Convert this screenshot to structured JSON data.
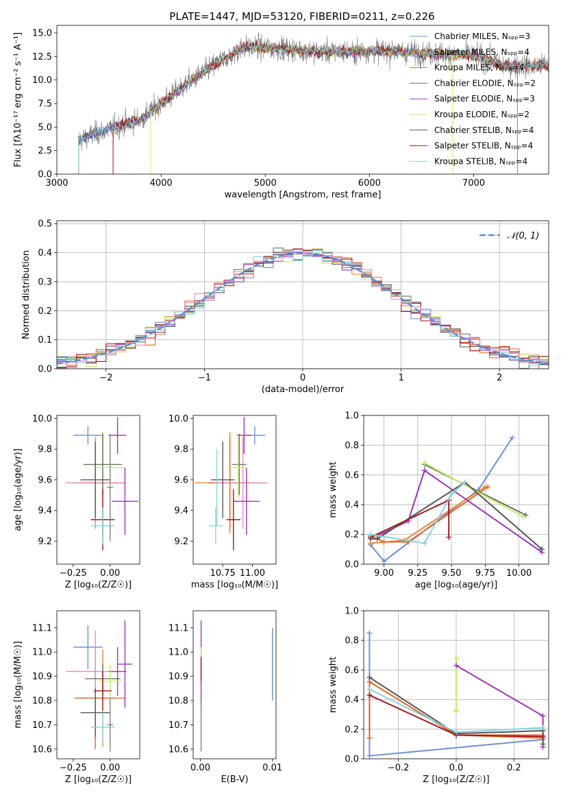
{
  "colors": {
    "Chabrier MILES": "#6a8fd8",
    "Salpeter MILES": "#e8853a",
    "Kroupa MILES": "#e46a2a",
    "Chabrier ELODIE": "#5d7a5d",
    "Salpeter ELODIE": "#9a35b5",
    "Kroupa ELODIE": "#c9e86a",
    "Chabrier STELIB": "#555555",
    "Salpeter STELIB": "#a0181a",
    "Kroupa STELIB": "#86d4dc",
    "pink": "#e888c0",
    "gray": "#808080",
    "gaussian": "#5b8ed8"
  },
  "spectrum": {
    "title": "PLATE=1447, MJD=53120, FIBERID=0211, z=0.226",
    "xlabel": "wavelength [Angstrom, rest frame]",
    "ylabel": "Flux [fλ10⁻¹⁷ erg cm⁻² s⁻¹ A⁻¹]",
    "xticks": [
      "3000",
      "4000",
      "5000",
      "6000",
      "7000"
    ],
    "yticks": [
      "0.0",
      "2.5",
      "5.0",
      "7.5",
      "10.0",
      "12.5",
      "15.0"
    ],
    "xlim": [
      3000,
      7720
    ],
    "ylim": [
      0,
      15.8
    ],
    "legend": [
      "Chabrier MILES, Nₛₚₚ=3",
      "Salpeter MILES, Nₛₚₚ=4",
      "Kroupa MILES, Nₛₚₚ=4",
      "Chabrier ELODIE, Nₛₚₚ=2",
      "Salpeter ELODIE, Nₛₚₚ=3",
      "Kroupa ELODIE, Nₛₚₚ=2",
      "Chabrier STELIB, Nₛₚₚ=4",
      "Salpeter STELIB, Nₛₚₚ=4",
      "Kroupa STELIB, Nₛₚₚ=4"
    ]
  },
  "hist": {
    "xlabel": "(data-model)/error",
    "ylabel": "Normed distribution",
    "xticks": [
      "−2",
      "−1",
      "0",
      "1",
      "2"
    ],
    "yticks": [
      "0.0",
      "0.1",
      "0.2",
      "0.3",
      "0.4",
      "0.5"
    ],
    "xlim": [
      -2.5,
      2.5
    ],
    "ylim": [
      0,
      0.51
    ],
    "legend": "𝒩(0, 1)"
  },
  "age_z": {
    "xlabel": "Z [log₁₀(Z/Z☉)]",
    "ylabel": "age  [log₁₀(age/yr)]",
    "xticks": [
      "−0.25",
      "0.00"
    ],
    "yticks": [
      "9.2",
      "9.4",
      "9.6",
      "9.8",
      "10.0"
    ],
    "xlim": [
      -0.36,
      0.2
    ],
    "ylim": [
      9.05,
      10.02
    ]
  },
  "age_mass": {
    "xlabel": "mass [log₁₀(M/M☉)]",
    "xticks": [
      "10.75",
      "11.00"
    ],
    "yticks": [
      "9.2",
      "9.4",
      "9.6",
      "9.8",
      "10.0"
    ],
    "xlim": [
      10.5,
      11.2
    ],
    "ylim": [
      9.05,
      10.02
    ]
  },
  "mw_age": {
    "xlabel": "age  [log₁₀(age/yr)]",
    "ylabel": "mass weight",
    "xticks": [
      "9.00",
      "9.25",
      "9.50",
      "9.75",
      "10.00"
    ],
    "yticks": [
      "0.0",
      "0.2",
      "0.4",
      "0.6",
      "0.8",
      "1.0"
    ],
    "xlim": [
      8.85,
      10.22
    ],
    "ylim": [
      0,
      1.0
    ]
  },
  "mass_z": {
    "xlabel": "Z [log₁₀(Z/Z☉)]",
    "ylabel": "mass [log₁₀(M/M☉)]",
    "xticks": [
      "−0.25",
      "0.00"
    ],
    "yticks": [
      "10.6",
      "10.7",
      "10.8",
      "10.9",
      "11.0",
      "11.1"
    ],
    "xlim": [
      -0.36,
      0.2
    ],
    "ylim": [
      10.56,
      11.17
    ]
  },
  "mass_ebv": {
    "xlabel": "E(B-V)",
    "xticks": [
      "0.00",
      "0.01"
    ],
    "yticks": [
      "10.6",
      "10.7",
      "10.8",
      "10.9",
      "11.0",
      "11.1"
    ],
    "xlim": [
      -0.001,
      0.0105
    ],
    "ylim": [
      10.56,
      11.17
    ]
  },
  "mw_z": {
    "xlabel": "Z [log₁₀(Z/Z☉)]",
    "ylabel": "mass weight",
    "xticks": [
      "−0.2",
      "0.0",
      "0.2"
    ],
    "yticks": [
      "0.0",
      "0.2",
      "0.4",
      "0.6",
      "0.8",
      "1.0"
    ],
    "xlim": [
      -0.32,
      0.32
    ],
    "ylim": [
      0,
      1.0
    ]
  },
  "chart_data": [
    {
      "type": "line",
      "title": "PLATE=1447, MJD=53120, FIBERID=0211, z=0.226",
      "xlabel": "wavelength [Angstrom, rest frame]",
      "xlim": [
        3000,
        7720
      ],
      "ylim": [
        0,
        15.8
      ],
      "series_starts": [
        3210,
        3540,
        3540,
        3210,
        3210,
        3900,
        3210,
        3540,
        3210
      ],
      "continuum_x": [
        3210,
        3500,
        3800,
        4000,
        4300,
        4500,
        4800,
        5000,
        5200,
        5500,
        5800,
        6000,
        6300,
        6600,
        7000,
        7300,
        7450,
        7720
      ],
      "continuum_y": [
        3.6,
        4.8,
        5.8,
        7.5,
        10.0,
        11.5,
        13.5,
        13.4,
        13.3,
        13.0,
        13.0,
        13.1,
        13.0,
        12.8,
        12.6,
        11.5,
        11.5,
        11.5
      ]
    },
    {
      "type": "bar",
      "xlabel": "(data-model)/error",
      "ylabel": "Normed distribution",
      "bin_width": 0.1,
      "x_start": -2.5,
      "gaussian": {
        "mu": 0,
        "sigma": 1
      }
    },
    {
      "type": "scatter",
      "name": "age vs Z",
      "points": [
        {
          "c": "Chabrier MILES",
          "x": -0.15,
          "y": 9.89,
          "xerr": 0.1,
          "yerr": 0.06
        },
        {
          "c": "Salpeter MILES",
          "x": -0.05,
          "y": 9.58,
          "xerr": 0.14,
          "yerr": 0.33
        },
        {
          "c": "Kroupa MILES",
          "x": -0.1,
          "y": 9.58,
          "xerr": 0.15,
          "yerr": 0.3
        },
        {
          "c": "pink",
          "x": -0.1,
          "y": 9.58,
          "xerr": 0.2,
          "yerr": 0.3
        },
        {
          "c": "Chabrier ELODIE",
          "x": -0.05,
          "y": 9.7,
          "xerr": 0.13,
          "yerr": 0.2
        },
        {
          "c": "Salpeter ELODIE",
          "x": 0.1,
          "y": 9.46,
          "xerr": 0.09,
          "yerr": 0.22
        },
        {
          "c": "Kroupa ELODIE",
          "x": 0.0,
          "y": 9.68,
          "xerr": 0.1,
          "yerr": 0.2
        },
        {
          "c": "Chabrier STELIB",
          "x": -0.1,
          "y": 9.6,
          "xerr": 0.1,
          "yerr": 0.25
        },
        {
          "c": "Salpeter STELIB",
          "x": -0.05,
          "y": 9.34,
          "xerr": 0.08,
          "yerr": 0.2
        },
        {
          "c": "Kroupa STELIB",
          "x": -0.05,
          "y": 9.3,
          "xerr": 0.08,
          "yerr": 0.12
        },
        {
          "c": "Salpeter ELODIE",
          "x": 0.05,
          "y": 9.89,
          "xerr": 0.06,
          "yerr": 0.12
        },
        {
          "c": "gray",
          "x": 0.0,
          "y": 9.55,
          "xerr": 0.02,
          "yerr": 0.35
        }
      ]
    },
    {
      "type": "scatter",
      "name": "age vs mass",
      "points": [
        {
          "c": "Chabrier MILES",
          "x": 11.02,
          "y": 9.89,
          "xerr": 0.09,
          "yerr": 0.06
        },
        {
          "c": "Salpeter MILES",
          "x": 10.81,
          "y": 9.58,
          "xerr": 0.3,
          "yerr": 0.33
        },
        {
          "c": "Kroupa MILES",
          "x": 10.81,
          "y": 9.58,
          "xerr": 0.18,
          "yerr": 0.3
        },
        {
          "c": "pink",
          "x": 10.92,
          "y": 9.58,
          "xerr": 0.21,
          "yerr": 0.3
        },
        {
          "c": "Chabrier ELODIE",
          "x": 10.89,
          "y": 9.7,
          "xerr": 0.06,
          "yerr": 0.2
        },
        {
          "c": "Salpeter ELODIE",
          "x": 10.95,
          "y": 9.46,
          "xerr": 0.11,
          "yerr": 0.22
        },
        {
          "c": "Kroupa ELODIE",
          "x": 10.88,
          "y": 9.68,
          "xerr": 0.07,
          "yerr": 0.2
        },
        {
          "c": "Chabrier STELIB",
          "x": 10.75,
          "y": 9.6,
          "xerr": 0.1,
          "yerr": 0.25
        },
        {
          "c": "Salpeter STELIB",
          "x": 10.84,
          "y": 9.34,
          "xerr": 0.06,
          "yerr": 0.2
        },
        {
          "c": "Kroupa STELIB",
          "x": 10.69,
          "y": 9.3,
          "xerr": 0.06,
          "yerr": 0.12
        },
        {
          "c": "Salpeter ELODIE",
          "x": 10.93,
          "y": 9.89,
          "xerr": 0.06,
          "yerr": 0.12
        },
        {
          "c": "Kroupa STELIB",
          "x": 10.7,
          "y": 9.55,
          "xerr": 0.0,
          "yerr": 0.25
        }
      ]
    },
    {
      "type": "line",
      "name": "mass weight vs age",
      "series": [
        {
          "c": "Chabrier MILES",
          "x": [
            8.9,
            9.0,
            9.7,
            9.95
          ],
          "y": [
            0.13,
            0.02,
            0.5,
            0.85
          ]
        },
        {
          "c": "Salpeter MILES",
          "x": [
            8.9,
            9.15,
            9.75
          ],
          "y": [
            0.14,
            0.16,
            0.52
          ]
        },
        {
          "c": "Kroupa MILES",
          "x": [
            8.9,
            9.0,
            9.18,
            9.77
          ],
          "y": [
            0.19,
            0.15,
            0.15,
            0.52
          ]
        },
        {
          "c": "Chabrier ELODIE",
          "x": [
            9.3,
            10.05
          ],
          "y": [
            0.67,
            0.33
          ]
        },
        {
          "c": "Salpeter ELODIE",
          "x": [
            8.95,
            9.18,
            9.3,
            10.17
          ],
          "y": [
            0.19,
            0.29,
            0.63,
            0.08
          ]
        },
        {
          "c": "Kroupa ELODIE",
          "x": [
            9.3,
            10.03
          ],
          "y": [
            0.68,
            0.32
          ]
        },
        {
          "c": "Chabrier STELIB",
          "x": [
            8.9,
            8.95,
            9.6,
            10.17
          ],
          "y": [
            0.17,
            0.17,
            0.55,
            0.1
          ]
        },
        {
          "c": "Salpeter STELIB",
          "x": [
            8.9,
            9.48,
            9.48
          ],
          "y": [
            0.18,
            0.43,
            0.18
          ]
        },
        {
          "c": "Kroupa STELIB",
          "x": [
            8.9,
            9.3,
            9.5,
            9.6
          ],
          "y": [
            0.2,
            0.14,
            0.47,
            0.55
          ]
        }
      ]
    },
    {
      "type": "scatter",
      "name": "mass vs Z",
      "points": [
        {
          "c": "Chabrier MILES",
          "x": -0.15,
          "y": 11.02,
          "xerr": 0.1,
          "yerr": 0.09
        },
        {
          "c": "Salpeter MILES",
          "x": -0.05,
          "y": 10.81,
          "xerr": 0.15,
          "yerr": 0.2
        },
        {
          "c": "Kroupa MILES",
          "x": -0.1,
          "y": 10.81,
          "xerr": 0.14,
          "yerr": 0.21
        },
        {
          "c": "pink",
          "x": -0.1,
          "y": 10.92,
          "xerr": 0.2,
          "yerr": 0.17
        },
        {
          "c": "Chabrier ELODIE",
          "x": -0.05,
          "y": 10.89,
          "xerr": 0.12,
          "yerr": 0.06
        },
        {
          "c": "Salpeter ELODIE",
          "x": 0.05,
          "y": 10.92,
          "xerr": 0.06,
          "yerr": 0.1
        },
        {
          "c": "Salpeter ELODIE",
          "x": 0.1,
          "y": 10.95,
          "xerr": 0.05,
          "yerr": 0.18
        },
        {
          "c": "Kroupa ELODIE",
          "x": 0.0,
          "y": 10.88,
          "xerr": 0.08,
          "yerr": 0.07
        },
        {
          "c": "Chabrier STELIB",
          "x": -0.1,
          "y": 10.75,
          "xerr": 0.1,
          "yerr": 0.1
        },
        {
          "c": "Salpeter STELIB",
          "x": -0.05,
          "y": 10.84,
          "xerr": 0.06,
          "yerr": 0.08
        },
        {
          "c": "Kroupa STELIB",
          "x": -0.05,
          "y": 10.69,
          "xerr": 0.08,
          "yerr": 0.06
        },
        {
          "c": "gray",
          "x": 0.0,
          "y": 10.7,
          "xerr": 0.02,
          "yerr": 0.11
        }
      ]
    },
    {
      "type": "scatter",
      "name": "mass vs E(B-V)",
      "points": [
        {
          "c": "Salpeter ELODIE",
          "x": 0.0001,
          "y": 10.95,
          "yerr": 0.18
        },
        {
          "c": "Chabrier MILES",
          "x": 0.01,
          "y": 10.95,
          "yerr": 0.15
        },
        {
          "c": "Kroupa ELODIE",
          "x": 0.0001,
          "y": 10.95,
          "yerr": 0.07
        },
        {
          "c": "Salpeter STELIB",
          "x": 0.0001,
          "y": 10.93,
          "yerr": 0.05
        },
        {
          "c": "gray",
          "x": 0.0001,
          "y": 10.7,
          "yerr": 0.11
        }
      ]
    },
    {
      "type": "line",
      "name": "mass weight vs Z",
      "series": [
        {
          "c": "Chabrier MILES",
          "x": [
            -0.3,
            -0.3,
            0.3
          ],
          "y": [
            0.85,
            0.02,
            0.13
          ]
        },
        {
          "c": "Salpeter MILES",
          "x": [
            -0.3,
            0.0,
            0.3
          ],
          "y": [
            0.52,
            0.16,
            0.14
          ]
        },
        {
          "c": "Kroupa MILES",
          "x": [
            -0.3,
            -0.3,
            0.0,
            0.3
          ],
          "y": [
            0.14,
            0.52,
            0.16,
            0.16
          ]
        },
        {
          "c": "Kroupa ELODIE",
          "x": [
            0.0,
            0.0,
            0.0
          ],
          "y": [
            0.68,
            0.33,
            0.32
          ]
        },
        {
          "c": "Salpeter ELODIE",
          "x": [
            0.0,
            0.3,
            0.3
          ],
          "y": [
            0.63,
            0.29,
            0.08
          ]
        },
        {
          "c": "Chabrier STELIB",
          "x": [
            -0.3,
            0.0,
            0.3,
            0.3
          ],
          "y": [
            0.55,
            0.17,
            0.19,
            0.1
          ]
        },
        {
          "c": "Salpeter STELIB",
          "x": [
            -0.3,
            0.0,
            0.3
          ],
          "y": [
            0.43,
            0.16,
            0.15
          ]
        },
        {
          "c": "Kroupa STELIB",
          "x": [
            -0.3,
            0.0,
            0.3
          ],
          "y": [
            0.47,
            0.18,
            0.21
          ]
        }
      ]
    }
  ]
}
